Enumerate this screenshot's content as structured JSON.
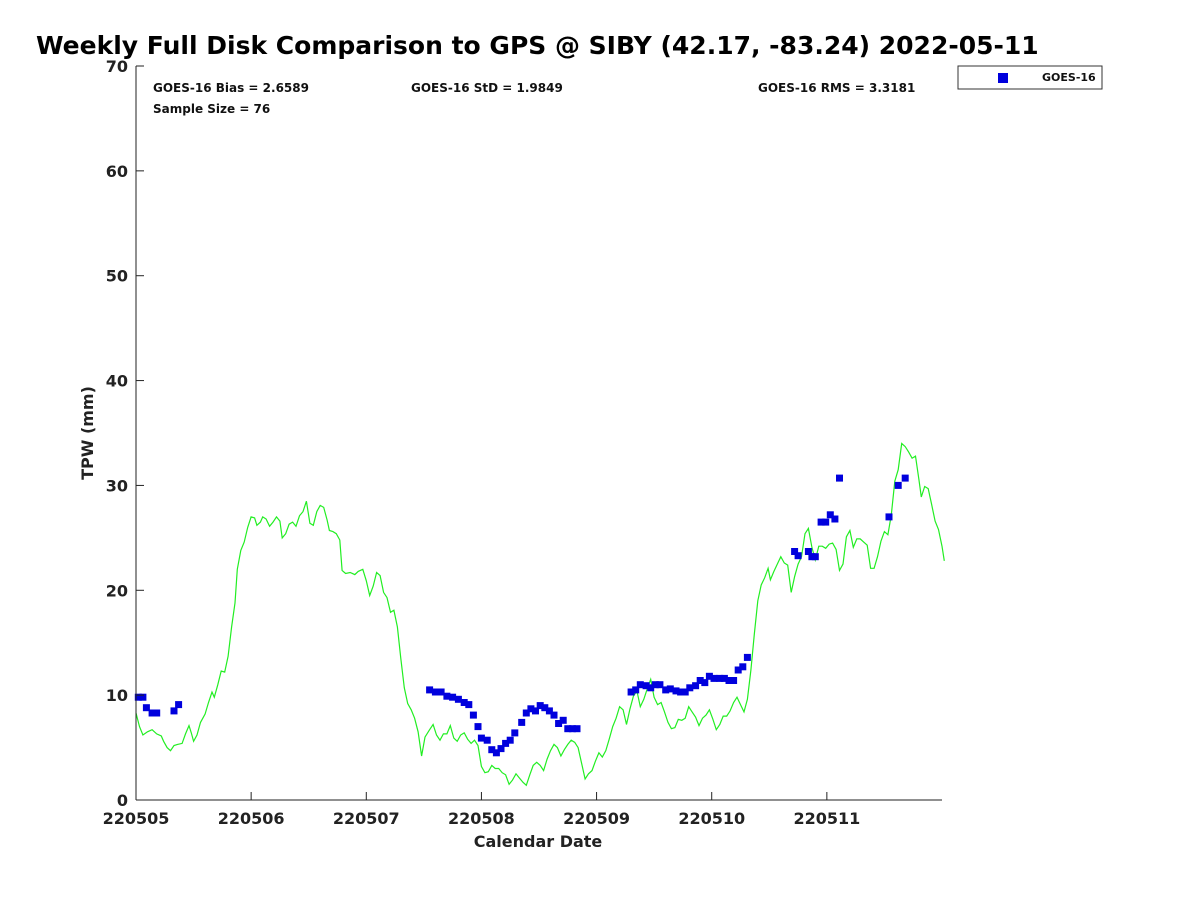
{
  "chart_data": {
    "type": "scatter",
    "title": "Weekly Full Disk Comparison to GPS @ SIBY (42.17, -83.24) 2022-05-11",
    "xlabel": "Calendar Date",
    "ylabel": "TPW (mm)",
    "xlim": [
      0,
      7
    ],
    "ylim": [
      0,
      70
    ],
    "x_ticks": [
      0,
      1,
      2,
      3,
      4,
      5,
      6
    ],
    "x_tick_labels": [
      "220505",
      "220506",
      "220507",
      "220508",
      "220509",
      "220510",
      "220511"
    ],
    "y_ticks": [
      0,
      10,
      20,
      30,
      40,
      50,
      60,
      70
    ],
    "y_tick_labels": [
      "0",
      "10",
      "20",
      "30",
      "40",
      "50",
      "60",
      "70"
    ],
    "stats": {
      "bias": "GOES-16 Bias = 2.6589",
      "std": "GOES-16 StD = 1.9849",
      "rms": "GOES-16 RMS = 3.3181",
      "sample": "Sample Size = 76"
    },
    "legend": {
      "position": "outside-top-right",
      "entries": [
        "GOES-16"
      ]
    },
    "colors": {
      "goes": "#0000dd",
      "gps": "#22ee22"
    },
    "series": [
      {
        "name": "GOES-16",
        "kind": "scatter",
        "points": [
          [
            0.02,
            9.8
          ],
          [
            0.06,
            9.8
          ],
          [
            0.09,
            8.8
          ],
          [
            0.14,
            8.3
          ],
          [
            0.18,
            8.3
          ],
          [
            0.33,
            8.5
          ],
          [
            0.37,
            9.1
          ],
          [
            2.55,
            10.5
          ],
          [
            2.6,
            10.3
          ],
          [
            2.65,
            10.3
          ],
          [
            2.7,
            9.9
          ],
          [
            2.75,
            9.8
          ],
          [
            2.8,
            9.6
          ],
          [
            2.85,
            9.3
          ],
          [
            2.89,
            9.1
          ],
          [
            2.93,
            8.1
          ],
          [
            2.97,
            7.0
          ],
          [
            3.0,
            5.9
          ],
          [
            3.05,
            5.7
          ],
          [
            3.09,
            4.8
          ],
          [
            3.13,
            4.5
          ],
          [
            3.17,
            4.9
          ],
          [
            3.21,
            5.4
          ],
          [
            3.25,
            5.7
          ],
          [
            3.29,
            6.4
          ],
          [
            3.35,
            7.4
          ],
          [
            3.39,
            8.3
          ],
          [
            3.43,
            8.7
          ],
          [
            3.47,
            8.5
          ],
          [
            3.51,
            9.0
          ],
          [
            3.55,
            8.8
          ],
          [
            3.59,
            8.5
          ],
          [
            3.63,
            8.1
          ],
          [
            3.67,
            7.3
          ],
          [
            3.71,
            7.6
          ],
          [
            3.75,
            6.8
          ],
          [
            3.79,
            6.8
          ],
          [
            3.83,
            6.8
          ],
          [
            4.3,
            10.3
          ],
          [
            4.34,
            10.5
          ],
          [
            4.38,
            11.0
          ],
          [
            4.43,
            10.9
          ],
          [
            4.47,
            10.7
          ],
          [
            4.51,
            11.0
          ],
          [
            4.55,
            11.0
          ],
          [
            4.6,
            10.5
          ],
          [
            4.64,
            10.6
          ],
          [
            4.69,
            10.4
          ],
          [
            4.73,
            10.3
          ],
          [
            4.77,
            10.3
          ],
          [
            4.81,
            10.7
          ],
          [
            4.86,
            10.9
          ],
          [
            4.9,
            11.4
          ],
          [
            4.94,
            11.2
          ],
          [
            4.98,
            11.8
          ],
          [
            5.02,
            11.6
          ],
          [
            5.07,
            11.6
          ],
          [
            5.11,
            11.6
          ],
          [
            5.15,
            11.4
          ],
          [
            5.19,
            11.4
          ],
          [
            5.23,
            12.4
          ],
          [
            5.27,
            12.7
          ],
          [
            5.31,
            13.6
          ],
          [
            5.72,
            23.7
          ],
          [
            5.75,
            23.3
          ],
          [
            5.84,
            23.7
          ],
          [
            5.87,
            23.2
          ],
          [
            5.9,
            23.2
          ],
          [
            5.95,
            26.5
          ],
          [
            5.99,
            26.5
          ],
          [
            6.03,
            27.2
          ],
          [
            6.07,
            26.8
          ],
          [
            6.11,
            30.7
          ],
          [
            6.54,
            27.0
          ],
          [
            6.62,
            30.0
          ],
          [
            6.68,
            30.7
          ]
        ]
      },
      {
        "name": "GPS",
        "kind": "line",
        "points": [
          [
            0.0,
            8.3
          ],
          [
            0.03,
            7.0
          ],
          [
            0.06,
            6.2
          ],
          [
            0.1,
            6.5
          ],
          [
            0.14,
            6.7
          ],
          [
            0.18,
            6.3
          ],
          [
            0.22,
            6.1
          ],
          [
            0.24,
            5.6
          ],
          [
            0.27,
            5.0
          ],
          [
            0.3,
            4.7
          ],
          [
            0.33,
            5.2
          ],
          [
            0.36,
            5.3
          ],
          [
            0.4,
            5.4
          ],
          [
            0.43,
            6.3
          ],
          [
            0.46,
            7.1
          ],
          [
            0.48,
            6.4
          ],
          [
            0.5,
            5.6
          ],
          [
            0.53,
            6.2
          ],
          [
            0.56,
            7.4
          ],
          [
            0.6,
            8.2
          ],
          [
            0.63,
            9.3
          ],
          [
            0.66,
            10.3
          ],
          [
            0.68,
            9.8
          ],
          [
            0.71,
            11.0
          ],
          [
            0.74,
            12.3
          ],
          [
            0.77,
            12.2
          ],
          [
            0.8,
            13.7
          ],
          [
            0.83,
            16.5
          ],
          [
            0.86,
            18.8
          ],
          [
            0.88,
            22.0
          ],
          [
            0.91,
            23.8
          ],
          [
            0.94,
            24.6
          ],
          [
            0.97,
            26.0
          ],
          [
            1.0,
            27.0
          ],
          [
            1.03,
            26.9
          ],
          [
            1.05,
            26.2
          ],
          [
            1.08,
            26.5
          ],
          [
            1.1,
            27.0
          ],
          [
            1.13,
            26.8
          ],
          [
            1.16,
            26.1
          ],
          [
            1.19,
            26.5
          ],
          [
            1.22,
            27.0
          ],
          [
            1.25,
            26.6
          ],
          [
            1.27,
            25.0
          ],
          [
            1.3,
            25.4
          ],
          [
            1.33,
            26.3
          ],
          [
            1.36,
            26.5
          ],
          [
            1.39,
            26.1
          ],
          [
            1.42,
            27.1
          ],
          [
            1.45,
            27.5
          ],
          [
            1.48,
            28.5
          ],
          [
            1.51,
            26.4
          ],
          [
            1.54,
            26.2
          ],
          [
            1.57,
            27.5
          ],
          [
            1.6,
            28.1
          ],
          [
            1.63,
            27.9
          ],
          [
            1.66,
            26.7
          ],
          [
            1.68,
            25.7
          ],
          [
            1.71,
            25.6
          ],
          [
            1.74,
            25.4
          ],
          [
            1.77,
            24.8
          ],
          [
            1.79,
            21.9
          ],
          [
            1.82,
            21.6
          ],
          [
            1.86,
            21.7
          ],
          [
            1.9,
            21.5
          ],
          [
            1.93,
            21.8
          ],
          [
            1.97,
            22.0
          ],
          [
            2.0,
            20.9
          ],
          [
            2.03,
            19.5
          ],
          [
            2.06,
            20.4
          ],
          [
            2.09,
            21.7
          ],
          [
            2.12,
            21.4
          ],
          [
            2.15,
            19.8
          ],
          [
            2.18,
            19.3
          ],
          [
            2.21,
            17.9
          ],
          [
            2.24,
            18.1
          ],
          [
            2.27,
            16.5
          ],
          [
            2.3,
            13.5
          ],
          [
            2.33,
            10.7
          ],
          [
            2.36,
            9.2
          ],
          [
            2.39,
            8.6
          ],
          [
            2.42,
            7.8
          ],
          [
            2.45,
            6.5
          ],
          [
            2.48,
            4.2
          ],
          [
            2.51,
            6.0
          ],
          [
            2.55,
            6.7
          ],
          [
            2.58,
            7.2
          ],
          [
            2.61,
            6.2
          ],
          [
            2.64,
            5.7
          ],
          [
            2.67,
            6.3
          ],
          [
            2.7,
            6.3
          ],
          [
            2.73,
            7.1
          ],
          [
            2.76,
            5.9
          ],
          [
            2.79,
            5.6
          ],
          [
            2.82,
            6.2
          ],
          [
            2.85,
            6.4
          ],
          [
            2.88,
            5.8
          ],
          [
            2.91,
            5.4
          ],
          [
            2.94,
            5.7
          ],
          [
            2.97,
            5.2
          ],
          [
            3.0,
            3.2
          ],
          [
            3.03,
            2.6
          ],
          [
            3.06,
            2.7
          ],
          [
            3.09,
            3.3
          ],
          [
            3.12,
            3.0
          ],
          [
            3.15,
            3.0
          ],
          [
            3.18,
            2.6
          ],
          [
            3.21,
            2.4
          ],
          [
            3.24,
            1.5
          ],
          [
            3.27,
            1.9
          ],
          [
            3.3,
            2.5
          ],
          [
            3.33,
            2.1
          ],
          [
            3.36,
            1.7
          ],
          [
            3.39,
            1.4
          ],
          [
            3.42,
            2.4
          ],
          [
            3.45,
            3.3
          ],
          [
            3.48,
            3.6
          ],
          [
            3.51,
            3.3
          ],
          [
            3.54,
            2.8
          ],
          [
            3.57,
            3.9
          ],
          [
            3.6,
            4.7
          ],
          [
            3.63,
            5.3
          ],
          [
            3.66,
            5.0
          ],
          [
            3.69,
            4.2
          ],
          [
            3.72,
            4.8
          ],
          [
            3.75,
            5.3
          ],
          [
            3.78,
            5.7
          ],
          [
            3.81,
            5.5
          ],
          [
            3.84,
            5.0
          ],
          [
            3.87,
            3.5
          ],
          [
            3.9,
            2.0
          ],
          [
            3.93,
            2.5
          ],
          [
            3.96,
            2.8
          ],
          [
            3.99,
            3.7
          ],
          [
            4.02,
            4.5
          ],
          [
            4.05,
            4.1
          ],
          [
            4.08,
            4.7
          ],
          [
            4.11,
            5.8
          ],
          [
            4.14,
            7.0
          ],
          [
            4.17,
            7.8
          ],
          [
            4.2,
            8.9
          ],
          [
            4.23,
            8.6
          ],
          [
            4.26,
            7.2
          ],
          [
            4.29,
            8.7
          ],
          [
            4.32,
            9.9
          ],
          [
            4.35,
            10.4
          ],
          [
            4.38,
            8.9
          ],
          [
            4.41,
            9.6
          ],
          [
            4.44,
            10.6
          ],
          [
            4.47,
            11.5
          ],
          [
            4.5,
            9.8
          ],
          [
            4.53,
            9.1
          ],
          [
            4.56,
            9.3
          ],
          [
            4.59,
            8.4
          ],
          [
            4.62,
            7.4
          ],
          [
            4.65,
            6.8
          ],
          [
            4.68,
            6.9
          ],
          [
            4.71,
            7.7
          ],
          [
            4.74,
            7.6
          ],
          [
            4.77,
            7.8
          ],
          [
            4.8,
            8.9
          ],
          [
            4.83,
            8.4
          ],
          [
            4.86,
            7.9
          ],
          [
            4.89,
            7.1
          ],
          [
            4.92,
            7.8
          ],
          [
            4.95,
            8.1
          ],
          [
            4.98,
            8.6
          ],
          [
            5.01,
            7.7
          ],
          [
            5.04,
            6.7
          ],
          [
            5.07,
            7.2
          ],
          [
            5.1,
            8.0
          ],
          [
            5.13,
            8.0
          ],
          [
            5.16,
            8.5
          ],
          [
            5.19,
            9.3
          ],
          [
            5.22,
            9.8
          ],
          [
            5.25,
            9.1
          ],
          [
            5.28,
            8.4
          ],
          [
            5.31,
            9.6
          ],
          [
            5.34,
            12.4
          ],
          [
            5.37,
            15.8
          ],
          [
            5.4,
            19.0
          ],
          [
            5.43,
            20.5
          ],
          [
            5.46,
            21.2
          ],
          [
            5.49,
            22.1
          ],
          [
            5.51,
            21.0
          ],
          [
            5.54,
            21.8
          ],
          [
            5.57,
            22.5
          ],
          [
            5.6,
            23.2
          ],
          [
            5.63,
            22.6
          ],
          [
            5.66,
            22.4
          ],
          [
            5.69,
            19.8
          ],
          [
            5.72,
            21.3
          ],
          [
            5.75,
            22.5
          ],
          [
            5.78,
            23.2
          ],
          [
            5.81,
            25.4
          ],
          [
            5.84,
            25.9
          ],
          [
            5.87,
            24.1
          ],
          [
            5.9,
            22.9
          ],
          [
            5.93,
            24.2
          ],
          [
            5.96,
            24.2
          ],
          [
            5.99,
            24.0
          ],
          [
            6.02,
            24.4
          ],
          [
            6.05,
            24.5
          ],
          [
            6.08,
            23.9
          ],
          [
            6.11,
            21.9
          ],
          [
            6.14,
            22.5
          ],
          [
            6.17,
            25.1
          ],
          [
            6.2,
            25.7
          ],
          [
            6.23,
            24.1
          ],
          [
            6.26,
            24.9
          ],
          [
            6.29,
            24.9
          ],
          [
            6.32,
            24.6
          ],
          [
            6.35,
            24.3
          ],
          [
            6.38,
            22.1
          ],
          [
            6.41,
            22.1
          ],
          [
            6.44,
            23.2
          ],
          [
            6.47,
            24.7
          ],
          [
            6.5,
            25.6
          ],
          [
            6.53,
            25.3
          ],
          [
            6.56,
            27.2
          ],
          [
            6.59,
            30.4
          ],
          [
            6.62,
            31.5
          ],
          [
            6.65,
            34.0
          ],
          [
            6.68,
            33.7
          ],
          [
            6.71,
            33.2
          ],
          [
            6.74,
            32.6
          ],
          [
            6.77,
            32.8
          ],
          [
            6.8,
            30.5
          ],
          [
            6.82,
            28.9
          ],
          [
            6.85,
            29.9
          ],
          [
            6.88,
            29.7
          ],
          [
            6.91,
            28.2
          ],
          [
            6.94,
            26.6
          ],
          [
            6.97,
            25.8
          ],
          [
            7.0,
            24.2
          ],
          [
            7.02,
            22.8
          ]
        ]
      }
    ]
  }
}
